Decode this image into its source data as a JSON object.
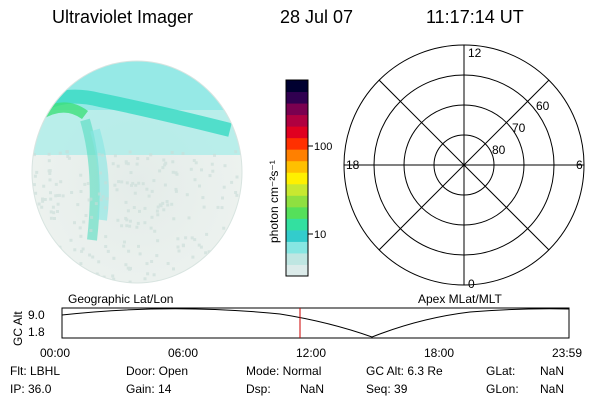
{
  "header": {
    "instrument": "Ultraviolet Imager",
    "date": "28 Jul 07",
    "time": "11:17:14 UT"
  },
  "colorbar": {
    "unit_label": "photon cm⁻²s⁻¹",
    "ticks": [
      "100",
      "10"
    ],
    "colors": [
      "#dcebea",
      "#bfe6e2",
      "#86e6e2",
      "#33cccc",
      "#33e0a0",
      "#55e05a",
      "#8fe040",
      "#c8e830",
      "#fff000",
      "#ffc000",
      "#ff8000",
      "#ff3000",
      "#e00020",
      "#b00040",
      "#7a0050",
      "#300050",
      "#000030"
    ]
  },
  "polar_plot": {
    "mlt_labels": {
      "top": "12",
      "bottom": "0",
      "left": "18",
      "right": "6"
    },
    "lat_labels": [
      "60",
      "70",
      "80"
    ]
  },
  "orbit_panel": {
    "left_label": "Geographic Lat/Lon",
    "right_label": "Apex  MLat/MLT",
    "axis_title": "GC Alt",
    "y_ticks": [
      "9.0",
      "1.8"
    ],
    "x_ticks": [
      "00:00",
      "06:00",
      "12:00",
      "18:00",
      "23:59"
    ]
  },
  "info": {
    "flt": "Flt: LBHL",
    "ip": "IP: 36.0",
    "door": "Door: Open",
    "gain": "Gain: 14",
    "mode": "Mode: Normal",
    "dsp_label": "Dsp:",
    "dsp_value": "NaN",
    "gc_alt": "GC Alt: 6.3 Re",
    "seq": "Seq: 39",
    "glat_label": "GLat:",
    "glat_value": "NaN",
    "glon_label": "GLon:",
    "glon_value": "NaN"
  }
}
